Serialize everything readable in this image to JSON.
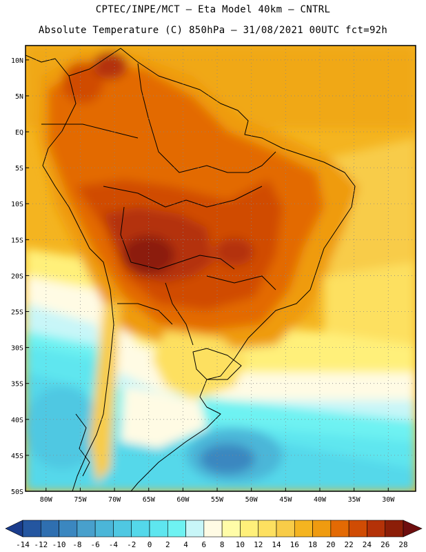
{
  "header": {
    "line1": "CPTEC/INPE/MCT –  Eta Model 40km – CNTRL",
    "line2": "Absolute Temperature (C) 850hPa – 31/08/2021 00UTC fct=92h"
  },
  "map": {
    "lon_range": [
      -83,
      -26
    ],
    "lat_range": [
      -50,
      12
    ],
    "lat_ticks": [
      "10N",
      "5N",
      "EQ",
      "5S",
      "10S",
      "15S",
      "20S",
      "25S",
      "30S",
      "35S",
      "40S",
      "45S",
      "50S"
    ],
    "lon_ticks": [
      "80W",
      "75W",
      "70W",
      "65W",
      "60W",
      "55W",
      "50W",
      "45W",
      "40W",
      "35W",
      "30W"
    ],
    "grid": "dotted"
  },
  "colorbar": {
    "labels": [
      "-14",
      "-12",
      "-10",
      "-8",
      "-6",
      "-4",
      "-2",
      "0",
      "2",
      "4",
      "6",
      "8",
      "10",
      "12",
      "14",
      "16",
      "18",
      "20",
      "22",
      "24",
      "26",
      "28"
    ],
    "colors": [
      "#1a3c8c",
      "#2456a0",
      "#2f6fb0",
      "#3b87c0",
      "#48a0cc",
      "#4bb6d8",
      "#4fc8e2",
      "#54d8ea",
      "#5ee6ef",
      "#6ef2f2",
      "#c8f6f8",
      "#fffbe4",
      "#fffca8",
      "#fff07a",
      "#fde060",
      "#f8cc48",
      "#f4b420",
      "#ef9b10",
      "#e36a04",
      "#d04c04",
      "#b43208",
      "#8c1e08",
      "#6e0e0e"
    ]
  }
}
